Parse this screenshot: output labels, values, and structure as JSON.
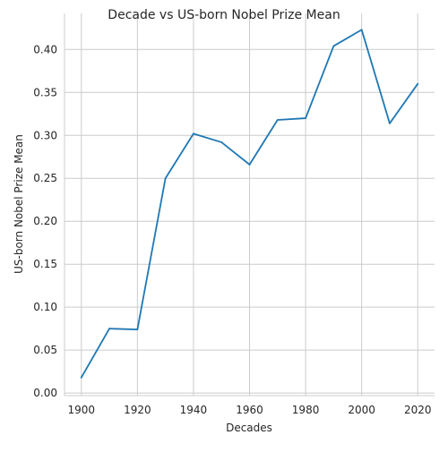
{
  "chart_data": {
    "type": "line",
    "title": "Decade vs US-born Nobel Prize Mean",
    "xlabel": "Decades",
    "ylabel": "US-born Nobel Prize Mean",
    "xlim": [
      1894,
      2026
    ],
    "ylim": [
      -0.003,
      0.442
    ],
    "xticks": [
      1900,
      1920,
      1940,
      1960,
      1980,
      2000,
      2020
    ],
    "yticks": [
      0.0,
      0.05,
      0.1,
      0.15,
      0.2,
      0.25,
      0.3,
      0.35,
      0.4
    ],
    "ytick_labels": [
      "0.00",
      "0.05",
      "0.10",
      "0.15",
      "0.20",
      "0.25",
      "0.30",
      "0.35",
      "0.40"
    ],
    "grid": true,
    "series": [
      {
        "color": "#1f77b4",
        "x": [
          1900,
          1910,
          1920,
          1930,
          1940,
          1950,
          1960,
          1970,
          1980,
          1990,
          2000,
          2010,
          2020
        ],
        "y": [
          0.018,
          0.075,
          0.074,
          0.25,
          0.302,
          0.292,
          0.266,
          0.318,
          0.32,
          0.404,
          0.423,
          0.314,
          0.36
        ]
      }
    ]
  }
}
